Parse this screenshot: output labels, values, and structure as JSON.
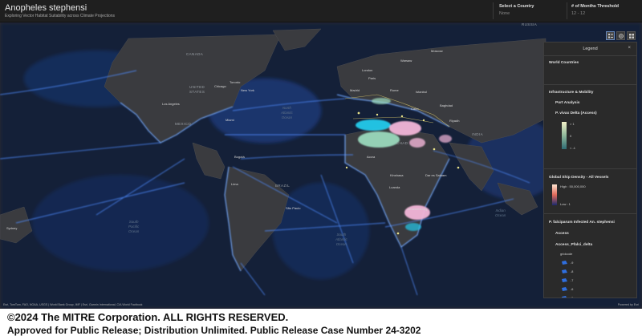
{
  "header": {
    "title": "Anopheles stephensi",
    "subtitle": "Exploring Vector Habitat Suitability across Climate Projections",
    "country_label": "Select a Country",
    "country_value": "None",
    "months_label": "# of Months Threshold",
    "months_value": "12 - 12"
  },
  "map": {
    "labels": {
      "russia": "RUSSIA",
      "canada": "CANADA",
      "united_states": "UNITED\nSTATES",
      "mexico": "MEXICO",
      "brazil": "BRAZIL",
      "india": "INDIA",
      "chad": "CHAD"
    },
    "cities": {
      "chicago": "Chicago",
      "toronto": "Toronto",
      "new_york": "New York",
      "los_angeles": "Los Angeles",
      "miami": "Miami",
      "bogota": "Bogotá",
      "lima": "Lima",
      "sao_paulo": "São Paulo",
      "london": "London",
      "warsaw": "Warsaw",
      "moscow": "Moscow",
      "paris": "Paris",
      "madrid": "Madrid",
      "rome": "Rome",
      "istanbul": "Istanbul",
      "cairo": "Cairo",
      "baghdad": "Baghdad",
      "riyadh": "Riyadh",
      "accra": "Accra",
      "kinshasa": "Kinshasa",
      "luanda": "Luanda",
      "dar_es_salaam": "Dar es Salaam",
      "johannesburg": "Johannesburg",
      "sydney": "Sydney"
    },
    "oceans": {
      "north_atlantic": "North\nAtlantic\nOcean",
      "south_pacific": "South\nPacific\nOcean",
      "south_atlantic": "South\nAtlantic\nOcean",
      "indian": "Indian\nOcean"
    },
    "attribution": "Esri, TomTom, FAO, NOAA, USGS | World Bank Group, IMF | Esri, Garmin International, CIA World Factbook",
    "powered_by": "Powered by Esri",
    "tools": [
      "legend-icon",
      "basemap-icon",
      "layers-icon"
    ]
  },
  "legend": {
    "title": "Legend",
    "close": "×",
    "world_countries": "World Countries",
    "infrastructure": "Infrastructure & Mobility",
    "port_analysis": "Port Analysis",
    "vivax_title": "P. vivax Delta (Access)",
    "vivax_high": "> 1",
    "vivax_mid": "0",
    "vivax_low": "< -1",
    "ship_title": "Global Ship Density - All Vessels",
    "ship_high": "High : 50,000,000",
    "ship_low": "Low : 1",
    "falci_title": "P. falciparum Infected An. stephensi",
    "access": "Access",
    "access_field": "Access_Pfalci_delta",
    "gridcode": "gridcode",
    "gridcode_values": [
      "-9",
      "-8",
      "-7",
      "-6",
      "-5"
    ],
    "colors": {
      "vivax_gradient": [
        "#f2f0c8",
        "#8fb89a",
        "#2e6b73"
      ],
      "ship_gradient": [
        "#fde4d0",
        "#e06a5a",
        "#1a2a6c"
      ],
      "gridcode_fill": "#2f6fe0"
    }
  },
  "footer": {
    "copyright": "©2024 The MITRE Corporation. ALL RIGHTS RESERVED.",
    "release": "Approved for Public Release; Distribution Unlimited. Public Release Case Number 24-3202"
  }
}
